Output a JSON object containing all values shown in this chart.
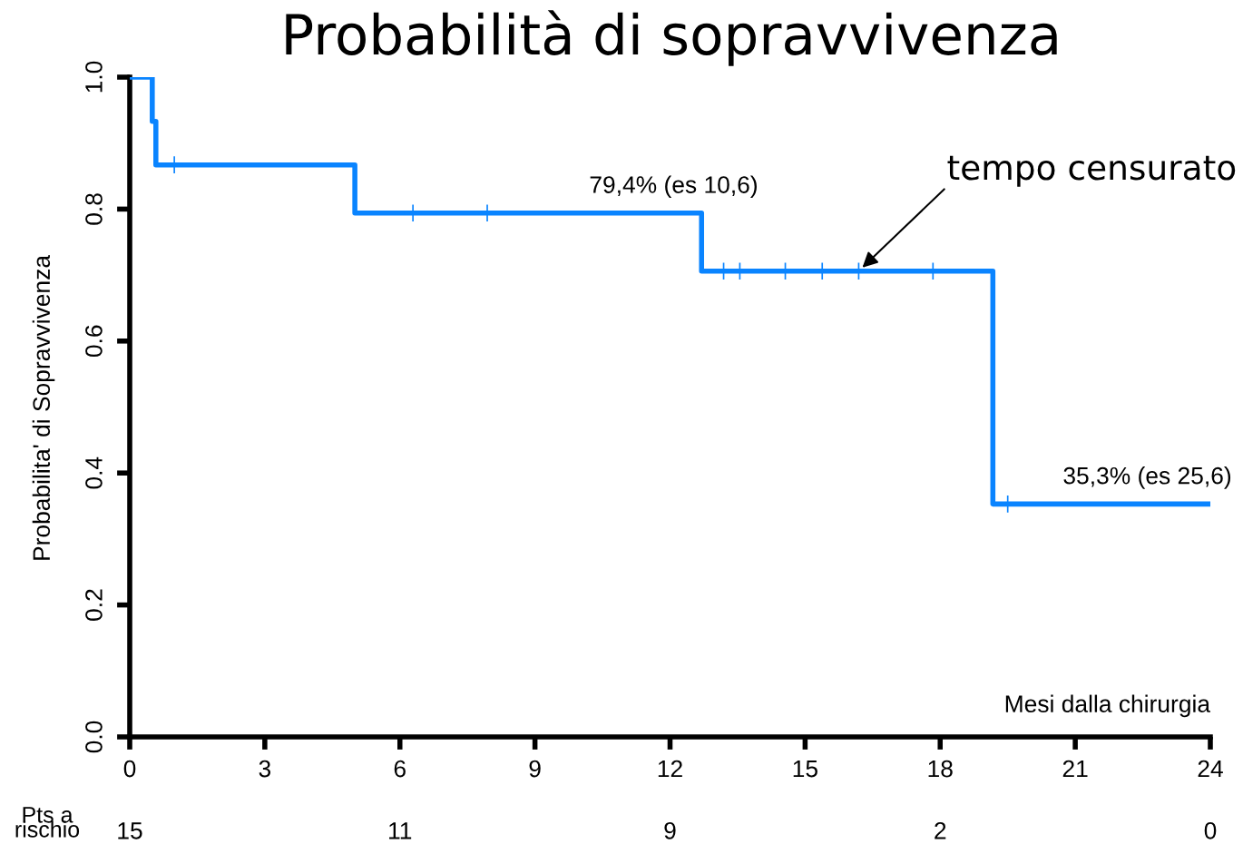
{
  "chart_data": {
    "type": "step",
    "title": "Probabilità di sopravvivenza",
    "xlabel": "Mesi dalla chirurgia",
    "ylabel": "Probabilita' di Sopravvivenza",
    "series": [
      {
        "type": "step",
        "color": "#0a84ff",
        "x": [
          0,
          0.5,
          0.58,
          5.0,
          12.7,
          19.17,
          24
        ],
        "values": [
          1.0,
          0.933,
          0.867,
          0.794,
          0.706,
          0.353,
          0.353
        ]
      },
      {
        "type": "scatter",
        "color": "#0a84ff",
        "marker": "cross",
        "x": [
          0.99,
          6.29,
          7.94,
          13.19,
          13.55,
          14.56,
          15.38,
          16.19,
          17.84,
          19.5
        ],
        "values": [
          0.867,
          0.794,
          0.794,
          0.706,
          0.706,
          0.706,
          0.706,
          0.706,
          0.706,
          0.353
        ]
      }
    ],
    "xlim": [
      0,
      24
    ],
    "xticks": [
      0,
      3,
      6,
      9,
      12,
      15,
      18,
      21,
      24
    ],
    "ylim": [
      0,
      1
    ],
    "yticks": [
      {
        "value": 0,
        "label": "0.0"
      },
      {
        "value": 0.2,
        "label": "0.2"
      },
      {
        "value": 0.4,
        "label": "0.4"
      },
      {
        "value": 0.6,
        "label": "0.6"
      },
      {
        "value": 0.8,
        "label": "0.8"
      },
      {
        "value": 1,
        "label": "1.0"
      }
    ],
    "annotations": [
      {
        "text": "79,4% (es 10,6)",
        "x": 12.08,
        "y": 0.794
      },
      {
        "text": "35,3% (es 25,6)",
        "x": 22.6,
        "y": 0.353
      },
      {
        "text": "tempo censurato",
        "x": 16.19,
        "y": 0.706
      },
      "Pts a\nrischio",
      "15",
      "11",
      "9",
      "2",
      "0"
    ],
    "grid": false,
    "legend": false
  }
}
